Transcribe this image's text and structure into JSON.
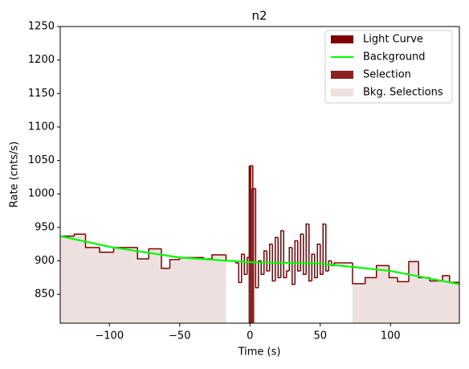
{
  "chart_data": {
    "type": "step",
    "title": "n2",
    "xlabel": "Time (s)",
    "ylabel": "Rate (cnts/s)",
    "xlim": [
      -135,
      149
    ],
    "ylim": [
      807,
      1250
    ],
    "xticks": [
      {
        "value": -100,
        "label": "−100"
      },
      {
        "value": -50,
        "label": "−50"
      },
      0,
      50,
      100
    ],
    "yticks": [
      850,
      900,
      950,
      1000,
      1050,
      1100,
      1150,
      1200,
      1250
    ],
    "legend": "upper right",
    "series": [
      {
        "name": "Light Curve",
        "color": "#800000",
        "bins": [
          -135,
          -125,
          -117,
          -107,
          -97,
          -80,
          -72,
          -63,
          -57,
          -50,
          -33,
          -27,
          -17,
          -10,
          -8,
          -6,
          -4,
          -2,
          0,
          2,
          4,
          6,
          8,
          10,
          12,
          14,
          16,
          18,
          20,
          22,
          24,
          26,
          28,
          30,
          32,
          34,
          36,
          38,
          40,
          42,
          44,
          46,
          48,
          50,
          52,
          54,
          56,
          58,
          60,
          73,
          82,
          90,
          99,
          105,
          113,
          120,
          128,
          137,
          142,
          149
        ],
        "values": [
          937,
          940,
          920,
          913,
          920,
          903,
          918,
          889,
          902,
          905,
          903,
          909,
          900,
          897,
          868,
          910,
          880,
          905,
          1042,
          1008,
          860,
          900,
          880,
          915,
          885,
          925,
          870,
          935,
          875,
          945,
          875,
          885,
          920,
          865,
          930,
          885,
          940,
          880,
          955,
          870,
          910,
          875,
          925,
          880,
          955,
          885,
          900,
          893,
          897,
          866,
          875,
          893,
          875,
          869,
          899,
          875,
          870,
          878,
          868
        ]
      },
      {
        "name": "Background",
        "color": "#00ff00",
        "x": [
          -135,
          -100,
          -50,
          0,
          50,
          100,
          149
        ],
        "values": [
          937,
          921,
          905,
          898,
          896,
          885,
          865
        ]
      },
      {
        "name": "Selection",
        "color": "#8b2323",
        "bins": [
          -1,
          1,
          3
        ],
        "values": [
          1042,
          1008
        ]
      },
      {
        "name": "Bkg. Selections",
        "color": "#efe0e0",
        "ranges": [
          [
            -135,
            -17
          ],
          [
            73,
            149
          ]
        ]
      }
    ]
  }
}
